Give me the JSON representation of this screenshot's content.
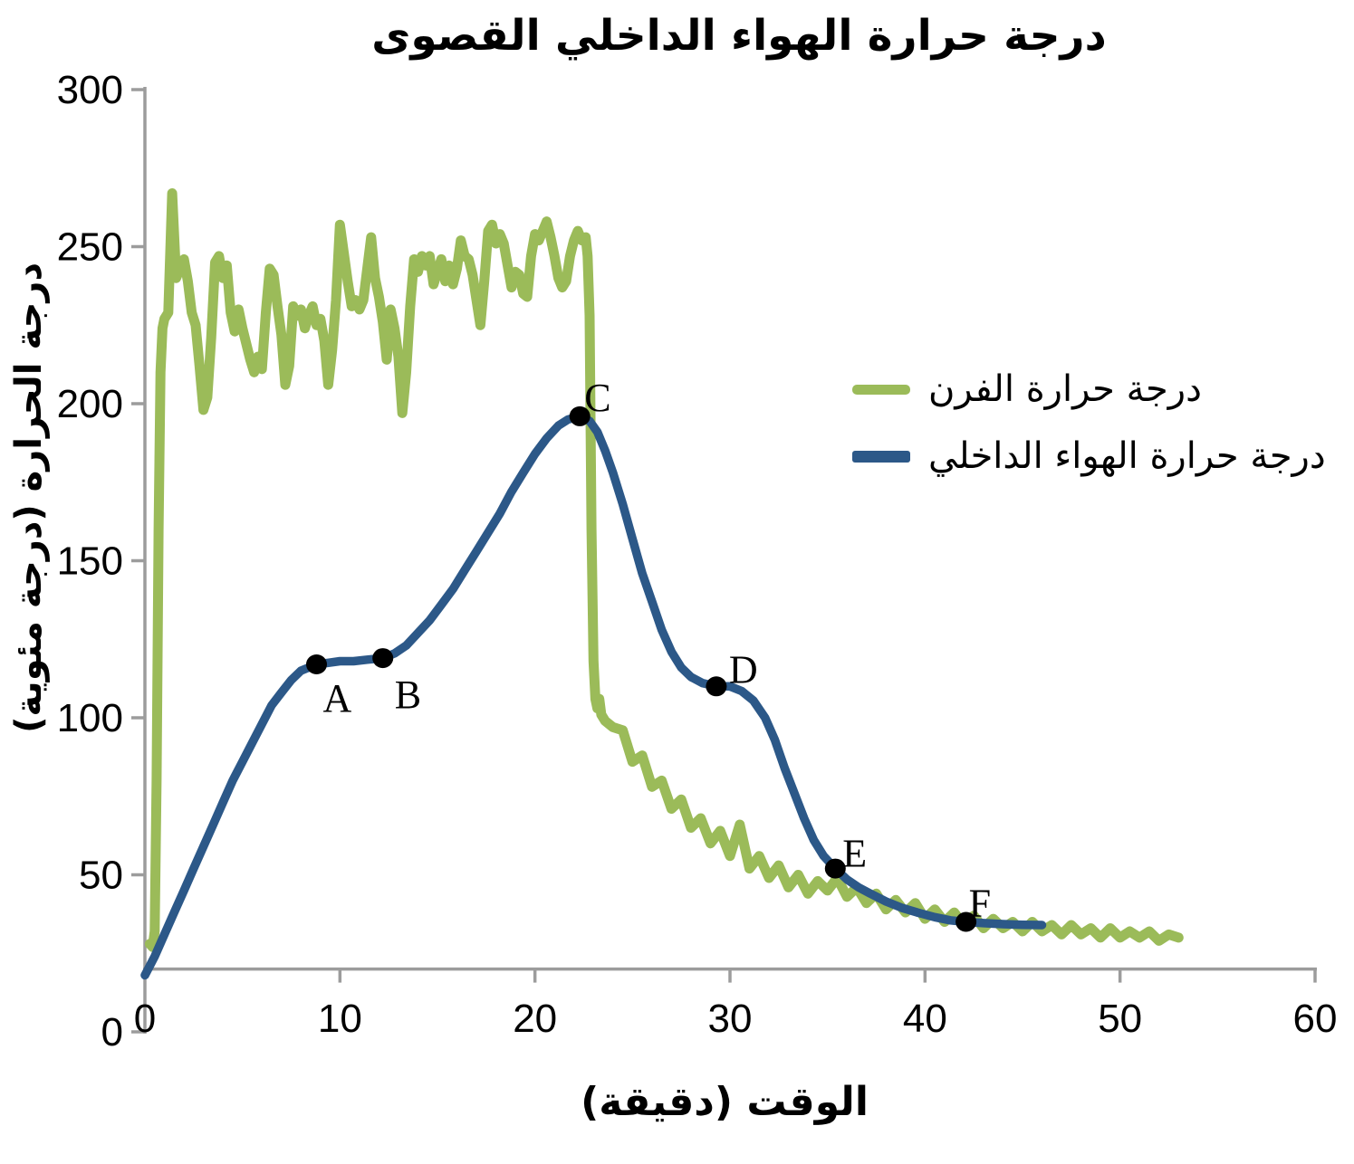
{
  "chart_data": {
    "type": "line",
    "title": "درجة حرارة الهواء الداخلي القصوى",
    "xlabel": "الوقت (دقيقة)",
    "ylabel": "درجة الحرارة (درجة مئوية)",
    "xlim": [
      0,
      60
    ],
    "ylim": [
      0,
      300
    ],
    "x_ticks": [
      0,
      10,
      20,
      30,
      40,
      50,
      60
    ],
    "y_ticks": [
      0,
      50,
      100,
      150,
      200,
      250,
      300
    ],
    "x_axis_crosses_at_y": 20,
    "grid": false,
    "legend_position": "right-middle",
    "axis_color": "#9C9C9C",
    "series": [
      {
        "name": "درجة حرارة الفرن",
        "color": "#9BBB59",
        "points": [
          [
            0.25,
            28
          ],
          [
            0.4,
            27
          ],
          [
            0.5,
            32
          ],
          [
            0.6,
            80
          ],
          [
            0.7,
            160
          ],
          [
            0.8,
            210
          ],
          [
            0.9,
            224
          ],
          [
            1,
            227
          ],
          [
            1.2,
            229
          ],
          [
            1.4,
            267
          ],
          [
            1.6,
            240
          ],
          [
            1.8,
            243
          ],
          [
            2,
            246
          ],
          [
            2.2,
            239
          ],
          [
            2.4,
            229
          ],
          [
            2.6,
            225
          ],
          [
            2.8,
            212
          ],
          [
            3,
            198
          ],
          [
            3.2,
            202
          ],
          [
            3.4,
            221
          ],
          [
            3.6,
            245
          ],
          [
            3.8,
            247
          ],
          [
            4,
            240
          ],
          [
            4.2,
            244
          ],
          [
            4.4,
            229
          ],
          [
            4.6,
            223
          ],
          [
            4.8,
            230
          ],
          [
            5,
            224
          ],
          [
            5.2,
            219
          ],
          [
            5.4,
            214
          ],
          [
            5.6,
            210
          ],
          [
            5.8,
            215
          ],
          [
            6,
            211
          ],
          [
            6.2,
            229
          ],
          [
            6.4,
            243
          ],
          [
            6.6,
            241
          ],
          [
            6.8,
            231
          ],
          [
            7,
            222
          ],
          [
            7.2,
            206
          ],
          [
            7.4,
            212
          ],
          [
            7.6,
            231
          ],
          [
            7.8,
            228
          ],
          [
            8,
            230
          ],
          [
            8.2,
            224
          ],
          [
            8.4,
            228
          ],
          [
            8.6,
            231
          ],
          [
            8.8,
            225
          ],
          [
            9,
            227
          ],
          [
            9.2,
            220
          ],
          [
            9.4,
            206
          ],
          [
            9.6,
            217
          ],
          [
            9.8,
            233
          ],
          [
            10,
            257
          ],
          [
            10.2,
            248
          ],
          [
            10.4,
            239
          ],
          [
            10.6,
            231
          ],
          [
            10.8,
            233
          ],
          [
            11,
            230
          ],
          [
            11.2,
            233
          ],
          [
            11.4,
            243
          ],
          [
            11.6,
            253
          ],
          [
            11.8,
            240
          ],
          [
            12,
            234
          ],
          [
            12.2,
            226
          ],
          [
            12.4,
            214
          ],
          [
            12.6,
            230
          ],
          [
            12.8,
            224
          ],
          [
            13,
            215
          ],
          [
            13.2,
            197
          ],
          [
            13.4,
            210
          ],
          [
            13.6,
            231
          ],
          [
            13.8,
            246
          ],
          [
            14,
            242
          ],
          [
            14.2,
            247
          ],
          [
            14.4,
            244
          ],
          [
            14.6,
            247
          ],
          [
            14.8,
            238
          ],
          [
            15,
            242
          ],
          [
            15.2,
            246
          ],
          [
            15.4,
            239
          ],
          [
            15.6,
            244
          ],
          [
            15.8,
            238
          ],
          [
            16,
            243
          ],
          [
            16.2,
            252
          ],
          [
            16.4,
            247
          ],
          [
            16.6,
            246
          ],
          [
            16.8,
            241
          ],
          [
            17,
            233
          ],
          [
            17.2,
            225
          ],
          [
            17.4,
            239
          ],
          [
            17.6,
            255
          ],
          [
            17.8,
            257
          ],
          [
            18,
            251
          ],
          [
            18.2,
            254
          ],
          [
            18.4,
            251
          ],
          [
            18.6,
            244
          ],
          [
            18.8,
            237
          ],
          [
            19,
            242
          ],
          [
            19.2,
            241
          ],
          [
            19.4,
            235
          ],
          [
            19.6,
            234
          ],
          [
            19.8,
            247
          ],
          [
            20,
            254
          ],
          [
            20.2,
            252
          ],
          [
            20.4,
            255
          ],
          [
            20.6,
            258
          ],
          [
            20.8,
            253
          ],
          [
            21,
            247
          ],
          [
            21.2,
            240
          ],
          [
            21.4,
            237
          ],
          [
            21.6,
            239
          ],
          [
            21.8,
            247
          ],
          [
            22,
            252
          ],
          [
            22.2,
            255
          ],
          [
            22.4,
            252
          ],
          [
            22.6,
            253
          ],
          [
            22.7,
            247
          ],
          [
            22.8,
            228
          ],
          [
            22.9,
            160
          ],
          [
            23,
            118
          ],
          [
            23.1,
            106
          ],
          [
            23.2,
            103
          ],
          [
            23.3,
            106
          ],
          [
            23.4,
            101
          ],
          [
            23.6,
            99
          ],
          [
            24,
            97
          ],
          [
            24.5,
            96
          ],
          [
            25,
            86
          ],
          [
            25.5,
            88
          ],
          [
            26,
            78
          ],
          [
            26.5,
            80
          ],
          [
            27,
            71
          ],
          [
            27.5,
            74
          ],
          [
            28,
            65
          ],
          [
            28.5,
            68
          ],
          [
            29,
            60
          ],
          [
            29.5,
            64
          ],
          [
            30,
            56
          ],
          [
            30.5,
            66
          ],
          [
            31,
            52
          ],
          [
            31.5,
            56
          ],
          [
            32,
            49
          ],
          [
            32.5,
            53
          ],
          [
            33,
            46
          ],
          [
            33.5,
            50
          ],
          [
            34,
            44
          ],
          [
            34.5,
            48
          ],
          [
            35,
            45
          ],
          [
            35.5,
            49
          ],
          [
            36,
            43
          ],
          [
            36.5,
            46
          ],
          [
            37,
            41
          ],
          [
            37.5,
            44
          ],
          [
            38,
            39
          ],
          [
            38.5,
            42
          ],
          [
            39,
            38
          ],
          [
            39.5,
            41
          ],
          [
            40,
            36
          ],
          [
            40.5,
            39
          ],
          [
            41,
            35
          ],
          [
            41.5,
            38
          ],
          [
            42,
            34
          ],
          [
            42.5,
            37
          ],
          [
            43,
            33
          ],
          [
            43.5,
            36
          ],
          [
            44,
            33
          ],
          [
            44.5,
            35
          ],
          [
            45,
            32
          ],
          [
            45.5,
            35
          ],
          [
            46,
            32
          ],
          [
            46.5,
            34
          ],
          [
            47,
            31
          ],
          [
            47.5,
            34
          ],
          [
            48,
            31
          ],
          [
            48.5,
            33
          ],
          [
            49,
            30
          ],
          [
            49.5,
            33
          ],
          [
            50,
            30
          ],
          [
            50.5,
            32
          ],
          [
            51,
            30
          ],
          [
            51.5,
            32
          ],
          [
            52,
            29
          ],
          [
            52.5,
            31
          ],
          [
            53,
            30
          ]
        ]
      },
      {
        "name": "درجة حرارة الهواء الداخلي",
        "color": "#2C5888",
        "points": [
          [
            0,
            18
          ],
          [
            0.5,
            24
          ],
          [
            1,
            31
          ],
          [
            1.5,
            38
          ],
          [
            2,
            45
          ],
          [
            2.5,
            52
          ],
          [
            3,
            59
          ],
          [
            3.5,
            66
          ],
          [
            4,
            73
          ],
          [
            4.5,
            80
          ],
          [
            5,
            86
          ],
          [
            5.5,
            92
          ],
          [
            6,
            98
          ],
          [
            6.5,
            104
          ],
          [
            7,
            108
          ],
          [
            7.5,
            112
          ],
          [
            8,
            115
          ],
          [
            8.4,
            116
          ],
          [
            8.8,
            117
          ],
          [
            9.4,
            117.5
          ],
          [
            10,
            118
          ],
          [
            10.7,
            118
          ],
          [
            11.4,
            118.5
          ],
          [
            12.2,
            119
          ],
          [
            12.8,
            120.5
          ],
          [
            13.4,
            123
          ],
          [
            14,
            127
          ],
          [
            14.6,
            131
          ],
          [
            15.2,
            136
          ],
          [
            15.8,
            141
          ],
          [
            16.4,
            147
          ],
          [
            17,
            153
          ],
          [
            17.6,
            159
          ],
          [
            18.2,
            165
          ],
          [
            18.8,
            172
          ],
          [
            19.4,
            178
          ],
          [
            20,
            184
          ],
          [
            20.6,
            189
          ],
          [
            21.2,
            193
          ],
          [
            21.7,
            195
          ],
          [
            22.3,
            196
          ],
          [
            22.8,
            194.5
          ],
          [
            23.2,
            191
          ],
          [
            23.6,
            185
          ],
          [
            24,
            178
          ],
          [
            24.5,
            168
          ],
          [
            25,
            157
          ],
          [
            25.5,
            146
          ],
          [
            26,
            137
          ],
          [
            26.5,
            128
          ],
          [
            27,
            121
          ],
          [
            27.5,
            116
          ],
          [
            28,
            113
          ],
          [
            28.6,
            111
          ],
          [
            29.3,
            110
          ],
          [
            30,
            110
          ],
          [
            30.6,
            108.5
          ],
          [
            31.2,
            105.5
          ],
          [
            31.8,
            100
          ],
          [
            32.3,
            93
          ],
          [
            32.8,
            84
          ],
          [
            33.3,
            76
          ],
          [
            33.8,
            68
          ],
          [
            34.3,
            61
          ],
          [
            34.8,
            56
          ],
          [
            35.4,
            52
          ],
          [
            36,
            48.5
          ],
          [
            36.6,
            46
          ],
          [
            37.2,
            44
          ],
          [
            38,
            41.5
          ],
          [
            38.8,
            39.5
          ],
          [
            39.6,
            38
          ],
          [
            40.5,
            36.5
          ],
          [
            41.3,
            35.5
          ],
          [
            42.1,
            35
          ],
          [
            43,
            34.6
          ],
          [
            44,
            34.3
          ],
          [
            45,
            34.1
          ],
          [
            46,
            34
          ]
        ]
      }
    ],
    "annotations": [
      {
        "label": "A",
        "t": 8.8,
        "temp": 117
      },
      {
        "label": "B",
        "t": 12.2,
        "temp": 119
      },
      {
        "label": "C",
        "t": 22.3,
        "temp": 196
      },
      {
        "label": "D",
        "t": 29.3,
        "temp": 110
      },
      {
        "label": "E",
        "t": 35.4,
        "temp": 52
      },
      {
        "label": "F",
        "t": 42.1,
        "temp": 35
      }
    ]
  }
}
